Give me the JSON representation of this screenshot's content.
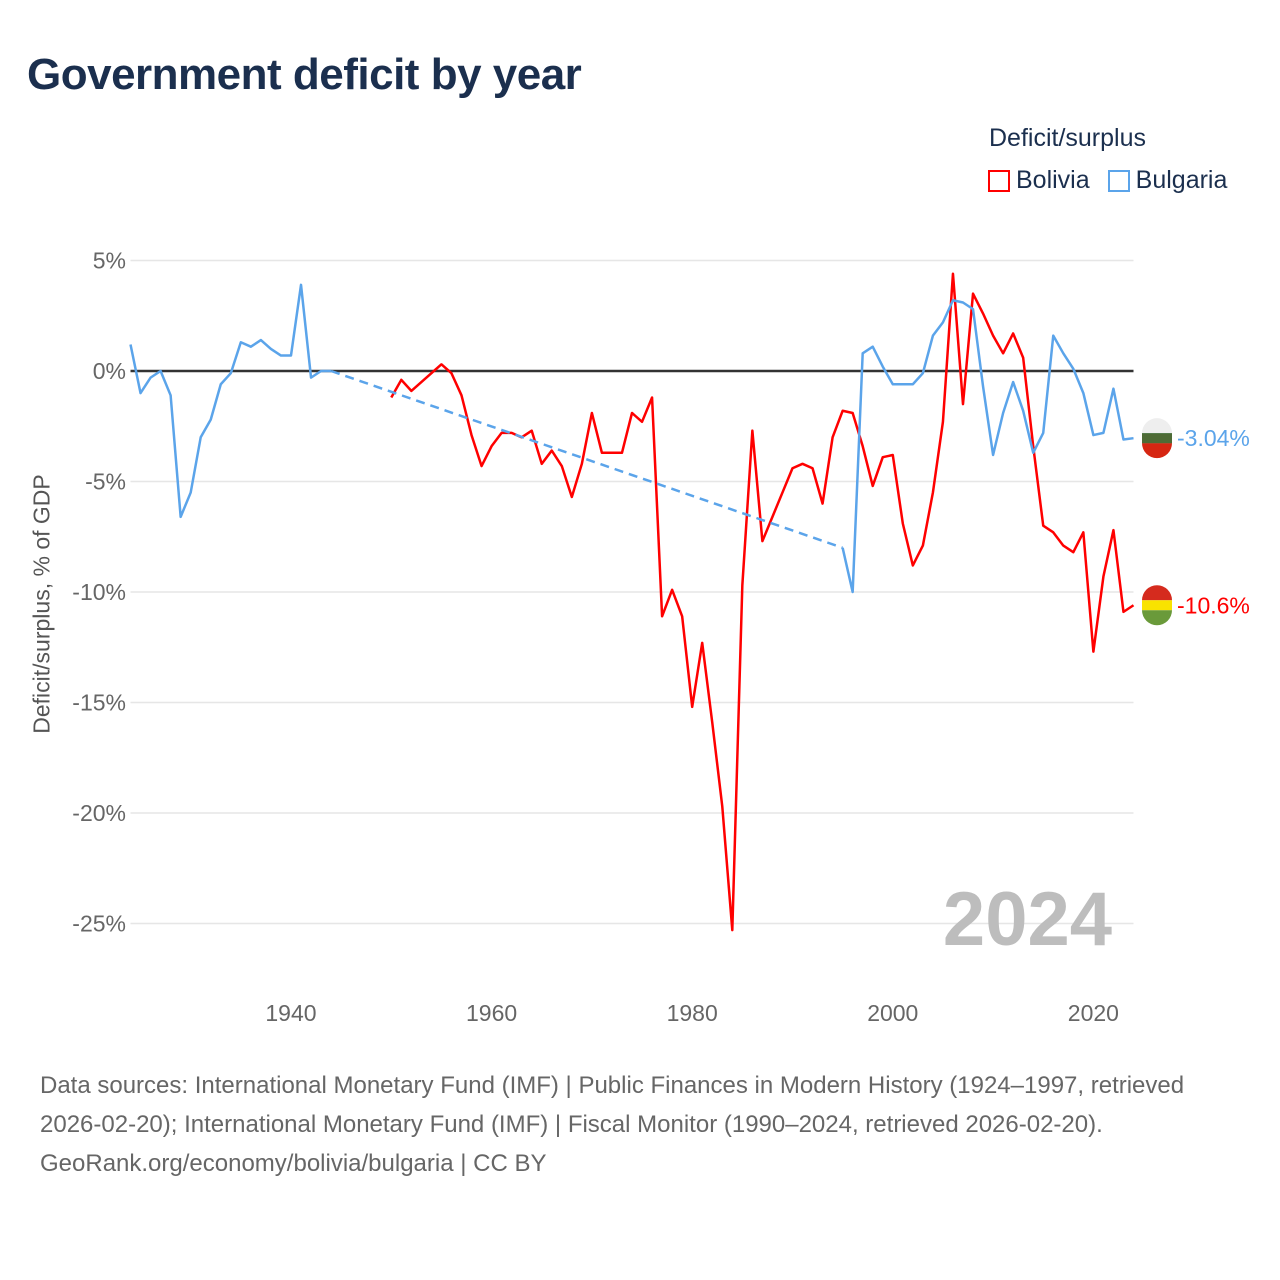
{
  "title": "Government deficit by year",
  "legend": {
    "title": "Deficit/surplus",
    "items": [
      {
        "name": "Bolivia",
        "color": "#ff0000"
      },
      {
        "name": "Bulgaria",
        "color": "#5ba4ea"
      }
    ]
  },
  "footer": {
    "sources": "Data sources: International Monetary Fund (IMF) | Public Finances in Modern History (1924–1997, retrieved 2026-02-20); International Monetary Fund (IMF) | Fiscal Monitor (1990–2024, retrieved 2026-02-20).",
    "credit": "GeoRank.org/economy/bolivia/bulgaria | CC BY"
  },
  "chart_data": {
    "type": "line",
    "title": "Government deficit by year",
    "xlabel": "",
    "ylabel": "Deficit/surplus, % of GDP",
    "xlim": [
      1924,
      2024
    ],
    "ylim": [
      -27,
      5
    ],
    "yticks": [
      5,
      0,
      -5,
      -10,
      -15,
      -20,
      -25
    ],
    "ytick_labels": [
      "5%",
      "0%",
      "-5%",
      "-10%",
      "-15%",
      "-20%",
      "-25%"
    ],
    "xticks": [
      1940,
      1960,
      1980,
      2000,
      2020
    ],
    "xtick_labels": [
      "1940",
      "1960",
      "1980",
      "2000",
      "2020"
    ],
    "year_watermark": "2024",
    "series": [
      {
        "name": "Bolivia",
        "color": "#ff0000",
        "end_label": "-10.6%",
        "x": [
          1950,
          1951,
          1952,
          1953,
          1954,
          1955,
          1956,
          1957,
          1958,
          1959,
          1960,
          1961,
          1962,
          1963,
          1964,
          1965,
          1966,
          1967,
          1968,
          1969,
          1970,
          1971,
          1972,
          1973,
          1974,
          1975,
          1976,
          1977,
          1978,
          1979,
          1980,
          1981,
          1982,
          1983,
          1984,
          1985,
          1986,
          1987,
          1988,
          1989,
          1990,
          1991,
          1992,
          1993,
          1994,
          1995,
          1996,
          1997,
          1998,
          1999,
          2000,
          2001,
          2002,
          2003,
          2004,
          2005,
          2006,
          2007,
          2008,
          2009,
          2010,
          2011,
          2012,
          2013,
          2014,
          2015,
          2016,
          2017,
          2018,
          2019,
          2020,
          2021,
          2022,
          2023,
          2024
        ],
        "y": [
          -1.2,
          -0.4,
          -0.9,
          -0.5,
          -0.1,
          0.3,
          -0.1,
          -1.1,
          -2.9,
          -4.3,
          -3.4,
          -2.8,
          -2.8,
          -3.0,
          -2.7,
          -4.2,
          -3.6,
          -4.3,
          -5.7,
          -4.2,
          -1.9,
          -3.7,
          -3.7,
          -3.7,
          -1.9,
          -2.3,
          -1.2,
          -11.1,
          -9.9,
          -11.1,
          -15.2,
          -12.3,
          -15.9,
          -19.7,
          -25.3,
          -9.7,
          -2.7,
          -7.7,
          -6.6,
          -5.5,
          -4.4,
          -4.2,
          -4.4,
          -6.0,
          -3.0,
          -1.8,
          -1.9,
          -3.4,
          -5.2,
          -3.9,
          -3.8,
          -6.9,
          -8.8,
          -7.9,
          -5.5,
          -2.3,
          4.4,
          -1.5,
          3.5,
          2.6,
          1.6,
          0.8,
          1.7,
          0.6,
          -3.4,
          -7.0,
          -7.3,
          -7.9,
          -8.2,
          -7.3,
          -12.7,
          -9.3,
          -7.2,
          -10.9,
          -10.6
        ]
      },
      {
        "name": "Bulgaria",
        "color": "#5ba4ea",
        "end_label": "-3.04%",
        "x": [
          1924,
          1925,
          1926,
          1927,
          1928,
          1929,
          1930,
          1931,
          1932,
          1933,
          1934,
          1935,
          1936,
          1937,
          1938,
          1939,
          1940,
          1941,
          1942,
          1943,
          1944,
          1995,
          1996,
          1997,
          1998,
          1999,
          2000,
          2001,
          2002,
          2003,
          2004,
          2005,
          2006,
          2007,
          2008,
          2009,
          2010,
          2011,
          2012,
          2013,
          2014,
          2015,
          2016,
          2017,
          2018,
          2019,
          2020,
          2021,
          2022,
          2023,
          2024
        ],
        "y": [
          1.2,
          -1.0,
          -0.3,
          0.0,
          -1.1,
          -6.6,
          -5.5,
          -3.0,
          -2.2,
          -0.6,
          -0.1,
          1.3,
          1.1,
          1.4,
          1.0,
          0.7,
          0.7,
          3.9,
          -0.3,
          0.0,
          0.0,
          -8.0,
          -10.0,
          0.8,
          1.1,
          0.2,
          -0.6,
          -0.6,
          -0.6,
          -0.1,
          1.6,
          2.2,
          3.2,
          3.1,
          2.8,
          -0.7,
          -3.8,
          -1.9,
          -0.5,
          -1.8,
          -3.7,
          -2.8,
          1.6,
          0.8,
          0.1,
          -1.0,
          -2.9,
          -2.8,
          -0.8,
          -3.1,
          -3.04
        ]
      }
    ]
  }
}
